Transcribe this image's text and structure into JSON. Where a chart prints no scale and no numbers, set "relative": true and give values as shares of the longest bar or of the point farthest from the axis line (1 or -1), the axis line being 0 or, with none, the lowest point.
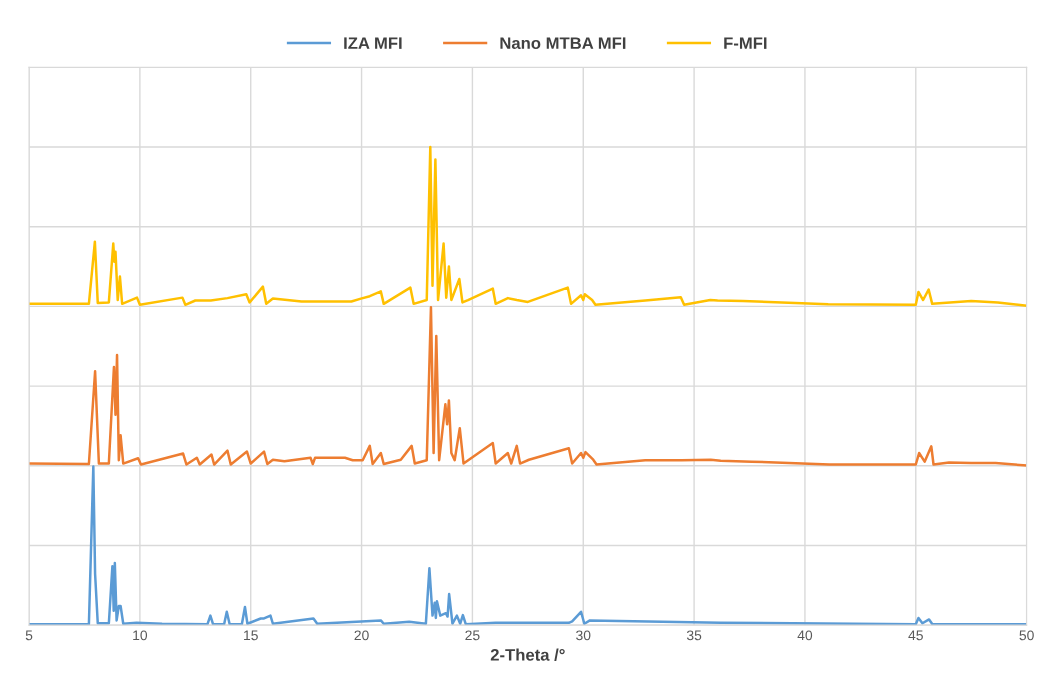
{
  "chart_data": {
    "type": "line",
    "xlabel": "2-Theta /°",
    "relative": true,
    "xlim": [
      5,
      50
    ],
    "xticks": [
      5,
      10,
      15,
      20,
      25,
      30,
      35,
      40,
      45,
      50
    ],
    "grid": true,
    "legend": "top",
    "tick_labels": "x",
    "marker": "none",
    "line_style": "solid",
    "series": [
      {
        "name": "IZA MFI",
        "color": "#5b9bd5",
        "x": [
          5,
          7.7,
          7.9,
          7.98,
          8.1,
          8.6,
          8.76,
          8.82,
          8.87,
          8.95,
          9.05,
          9.13,
          9.25,
          9.85,
          11.0,
          13.05,
          13.18,
          13.3,
          13.8,
          13.92,
          14.05,
          14.6,
          14.74,
          14.85,
          15.45,
          15.6,
          15.89,
          16.0,
          17.83,
          18.0,
          20.87,
          21.0,
          22.15,
          22.9,
          23.06,
          23.2,
          23.3,
          23.35,
          23.4,
          23.55,
          23.8,
          23.88,
          23.95,
          24.1,
          24.3,
          24.45,
          24.57,
          24.7,
          26.05,
          29.35,
          29.5,
          29.9,
          30.05,
          30.3,
          36.2,
          45.0,
          45.12,
          45.3,
          45.6,
          45.75,
          50
        ],
        "values": [
          0.002,
          0.002,
          0.332,
          0.107,
          0.004,
          0.004,
          0.123,
          0.03,
          0.13,
          0.01,
          0.04,
          0.04,
          0.003,
          0.005,
          0.003,
          0.002,
          0.02,
          0.002,
          0.002,
          0.028,
          0.002,
          0.002,
          0.038,
          0.003,
          0.014,
          0.014,
          0.02,
          0.003,
          0.014,
          0.003,
          0.01,
          0.003,
          0.007,
          0.003,
          0.119,
          0.02,
          0.047,
          0.015,
          0.05,
          0.02,
          0.025,
          0.018,
          0.065,
          0.003,
          0.02,
          0.003,
          0.021,
          0.002,
          0.005,
          0.005,
          0.008,
          0.028,
          0.003,
          0.01,
          0.005,
          0.002,
          0.015,
          0.004,
          0.012,
          0.002,
          0.002
        ]
      },
      {
        "name": "Nano MTBA MFI",
        "color": "#ed7d31",
        "x": [
          5,
          7.7,
          7.98,
          8.15,
          8.6,
          8.83,
          8.9,
          8.97,
          9.05,
          9.13,
          9.25,
          9.92,
          10.05,
          11.95,
          12.1,
          12.57,
          12.7,
          13.23,
          13.35,
          13.95,
          14.1,
          14.83,
          15.0,
          15.6,
          15.75,
          16.0,
          16.52,
          17.7,
          17.8,
          17.9,
          19.25,
          19.6,
          20.05,
          20.37,
          20.5,
          20.87,
          21.0,
          21.77,
          22.26,
          22.4,
          22.94,
          23.13,
          23.25,
          23.37,
          23.5,
          23.78,
          23.86,
          23.94,
          24.05,
          24.2,
          24.43,
          24.6,
          25.92,
          26.05,
          26.6,
          26.75,
          27.0,
          27.15,
          27.55,
          29.35,
          29.5,
          29.9,
          30.0,
          30.1,
          30.45,
          30.6,
          32.8,
          34.45,
          35.75,
          36.2,
          37.6,
          41.1,
          45.0,
          45.15,
          45.4,
          45.7,
          45.8,
          46.5,
          47.5,
          48.6,
          50
        ],
        "values": [
          0.338,
          0.337,
          0.531,
          0.338,
          0.338,
          0.54,
          0.44,
          0.565,
          0.345,
          0.397,
          0.338,
          0.349,
          0.336,
          0.359,
          0.336,
          0.35,
          0.336,
          0.357,
          0.336,
          0.365,
          0.336,
          0.363,
          0.338,
          0.363,
          0.337,
          0.346,
          0.343,
          0.35,
          0.337,
          0.35,
          0.35,
          0.345,
          0.345,
          0.375,
          0.337,
          0.36,
          0.337,
          0.346,
          0.375,
          0.338,
          0.345,
          0.665,
          0.36,
          0.605,
          0.345,
          0.462,
          0.42,
          0.47,
          0.36,
          0.345,
          0.412,
          0.338,
          0.381,
          0.338,
          0.36,
          0.338,
          0.375,
          0.338,
          0.346,
          0.37,
          0.338,
          0.36,
          0.35,
          0.362,
          0.346,
          0.336,
          0.345,
          0.345,
          0.346,
          0.344,
          0.342,
          0.336,
          0.336,
          0.36,
          0.342,
          0.374,
          0.336,
          0.34,
          0.339,
          0.339,
          0.334
        ]
      },
      {
        "name": "F-MFI",
        "color": "#ffc000",
        "x": [
          5,
          7.7,
          7.97,
          8.1,
          8.6,
          8.8,
          8.85,
          8.9,
          9.0,
          9.1,
          9.2,
          9.87,
          10.0,
          11.92,
          12.05,
          12.5,
          13.2,
          13.95,
          14.8,
          14.95,
          15.55,
          15.7,
          16.0,
          17.29,
          17.7,
          18.32,
          19.25,
          19.54,
          19.97,
          20.37,
          20.87,
          21.0,
          22.2,
          22.35,
          22.94,
          23.1,
          23.2,
          23.33,
          23.45,
          23.7,
          23.82,
          23.94,
          24.05,
          24.41,
          24.55,
          24.8,
          25.92,
          26.05,
          26.6,
          27.0,
          27.5,
          29.3,
          29.45,
          29.9,
          30.0,
          30.07,
          30.4,
          30.55,
          32.8,
          34.4,
          34.55,
          35.73,
          36.06,
          37.2,
          41.05,
          45.0,
          45.12,
          45.33,
          45.58,
          45.74,
          47.5,
          48.7,
          50
        ],
        "values": [
          0.672,
          0.672,
          0.802,
          0.674,
          0.675,
          0.798,
          0.76,
          0.781,
          0.68,
          0.729,
          0.672,
          0.685,
          0.67,
          0.685,
          0.67,
          0.679,
          0.679,
          0.684,
          0.692,
          0.675,
          0.708,
          0.672,
          0.683,
          0.677,
          0.677,
          0.677,
          0.677,
          0.677,
          0.683,
          0.688,
          0.698,
          0.672,
          0.706,
          0.672,
          0.68,
          1.0,
          0.71,
          0.974,
          0.68,
          0.798,
          0.685,
          0.75,
          0.68,
          0.724,
          0.675,
          0.68,
          0.704,
          0.672,
          0.684,
          0.68,
          0.676,
          0.706,
          0.672,
          0.69,
          0.68,
          0.692,
          0.68,
          0.67,
          0.679,
          0.686,
          0.67,
          0.68,
          0.679,
          0.678,
          0.671,
          0.67,
          0.697,
          0.68,
          0.702,
          0.672,
          0.678,
          0.675,
          0.668
        ]
      }
    ]
  }
}
